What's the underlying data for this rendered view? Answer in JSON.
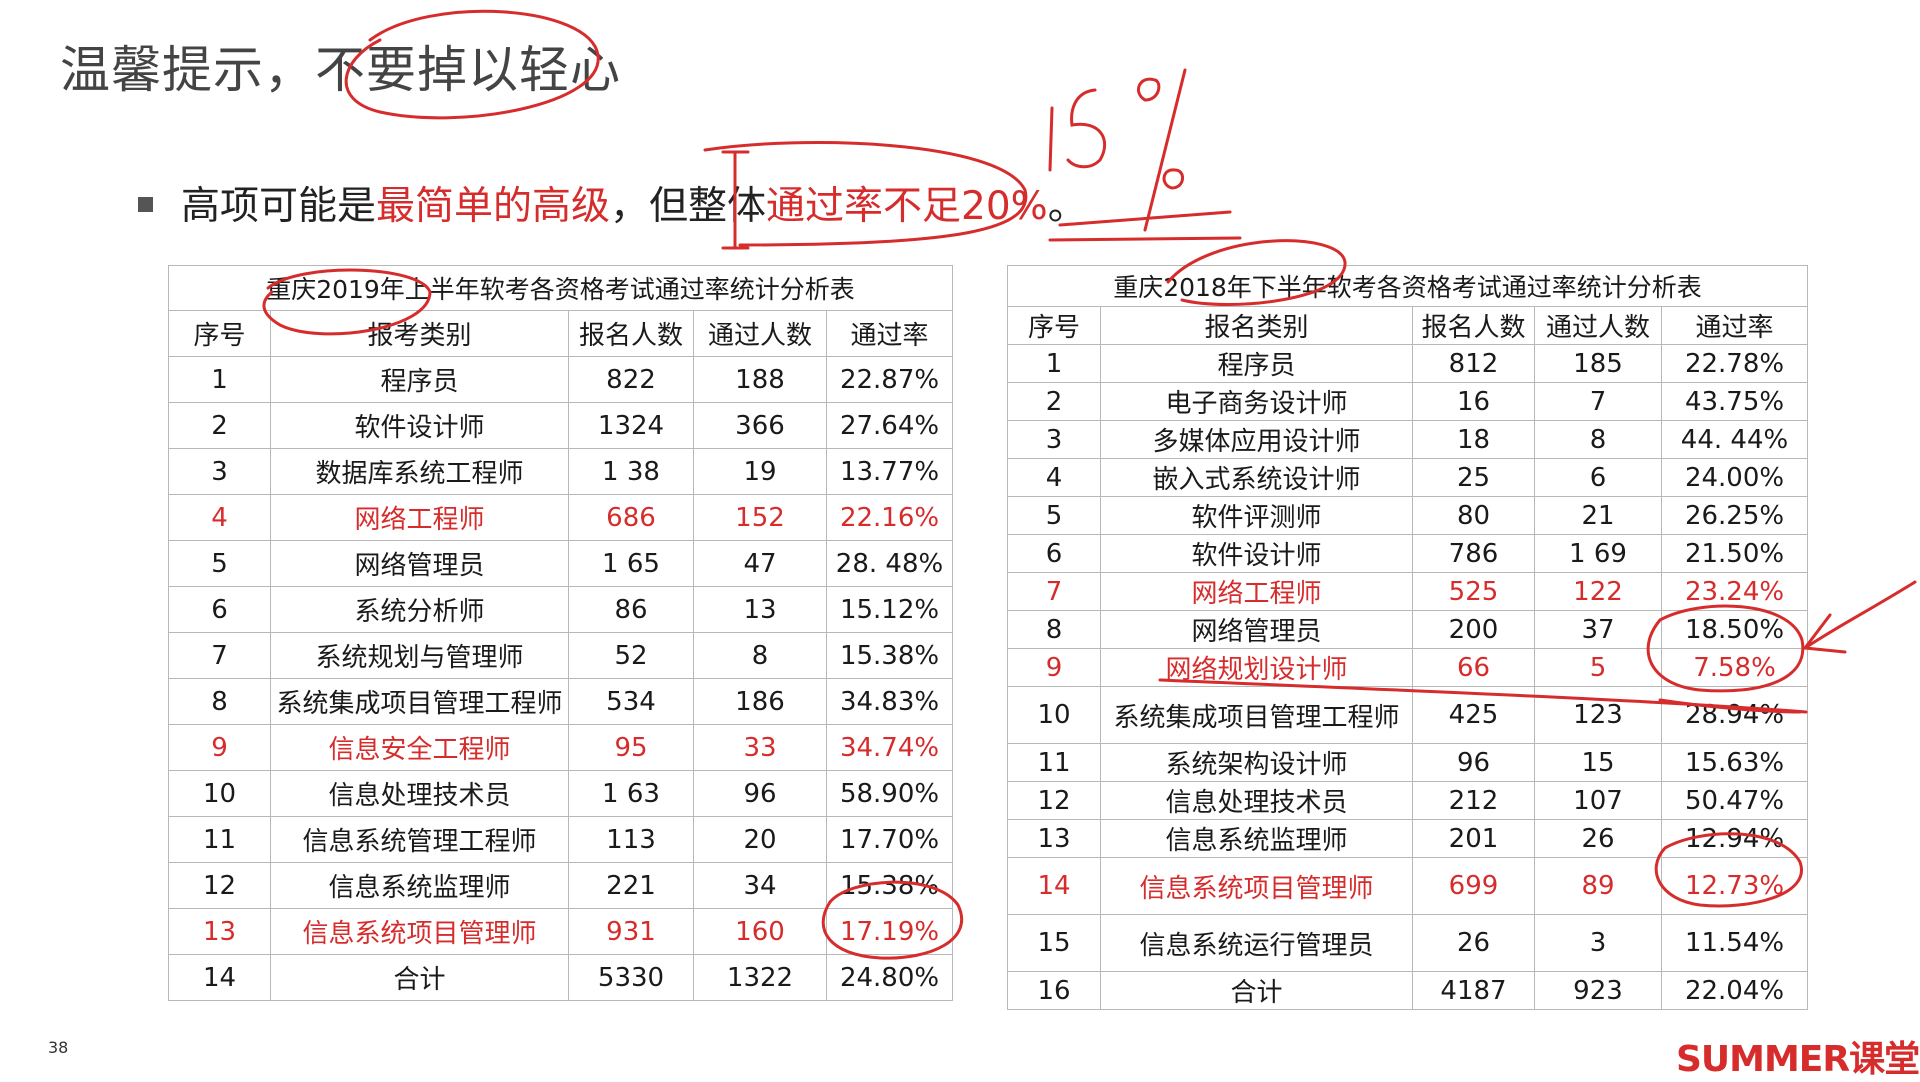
{
  "title": "温馨提示，不要掉以轻心",
  "bullet": {
    "prefix": "高项可能是",
    "highlight1": "最简单的高级",
    "middle": "，但整体",
    "highlight2": "通过率不足20%",
    "suffix": "。"
  },
  "annotation_text": "15%",
  "table_left": {
    "caption": "重庆2019年上半年软考各资格考试通过率统计分析表",
    "headers": [
      "序号",
      "报考类别",
      "报名人数",
      "通过人数",
      "通过率"
    ],
    "rows": [
      [
        "1",
        "程序员",
        "822",
        "188",
        "22.87%"
      ],
      [
        "2",
        "软件设计师",
        "1324",
        "366",
        "27.64%"
      ],
      [
        "3",
        "数据库系统工程师",
        "1 38",
        "19",
        "13.77%"
      ],
      [
        "4",
        "网络工程师",
        "686",
        "152",
        "22.16%"
      ],
      [
        "5",
        "网络管理员",
        "1 65",
        "47",
        "28. 48%"
      ],
      [
        "6",
        "系统分析师",
        "86",
        "13",
        "15.12%"
      ],
      [
        "7",
        "系统规划与管理师",
        "52",
        "8",
        "15.38%"
      ],
      [
        "8",
        "系统集成项目管理工程师",
        "534",
        "186",
        "34.83%"
      ],
      [
        "9",
        "信息安全工程师",
        "95",
        "33",
        "34.74%"
      ],
      [
        "10",
        "信息处理技术员",
        "1 63",
        "96",
        "58.90%"
      ],
      [
        "11",
        "信息系统管理工程师",
        "113",
        "20",
        "17.70%"
      ],
      [
        "12",
        "信息系统监理师",
        "221",
        "34",
        "15.38%"
      ],
      [
        "13",
        "信息系统项目管理师",
        "931",
        "160",
        "17.19%"
      ],
      [
        "14",
        "合计",
        "5330",
        "1322",
        "24.80%"
      ]
    ]
  },
  "table_right": {
    "caption": "重庆2018年下半年软考各资格考试通过率统计分析表",
    "headers": [
      "序号",
      "报名类别",
      "报名人数",
      "通过人数",
      "通过率"
    ],
    "rows": [
      [
        "1",
        "程序员",
        "812",
        "185",
        "22.78%"
      ],
      [
        "2",
        "电子商务设计师",
        "16",
        "7",
        "43.75%"
      ],
      [
        "3",
        "多媒体应用设计师",
        "18",
        "8",
        "44. 44%"
      ],
      [
        "4",
        "嵌入式系统设计师",
        "25",
        "6",
        "24.00%"
      ],
      [
        "5",
        "软件评测师",
        "80",
        "21",
        "26.25%"
      ],
      [
        "6",
        "软件设计师",
        "786",
        "1 69",
        "21.50%"
      ],
      [
        "7",
        "网络工程师",
        "525",
        "122",
        "23.24%"
      ],
      [
        "8",
        "网络管理员",
        "200",
        "37",
        "18.50%"
      ],
      [
        "9",
        "网络规划设计师",
        "66",
        "5",
        "7.58%"
      ],
      [
        "10",
        "系统集成项目管理工程师",
        "425",
        "123",
        "28.94%"
      ],
      [
        "11",
        "系统架构设计师",
        "96",
        "15",
        "15.63%"
      ],
      [
        "12",
        "信息处理技术员",
        "212",
        "107",
        "50.47%"
      ],
      [
        "13",
        "信息系统监理师",
        "201",
        "26",
        "12.94%"
      ],
      [
        "14",
        "信息系统项目管理师",
        "699",
        "89",
        "12.73%"
      ],
      [
        "15",
        "信息系统运行管理员",
        "26",
        "3",
        "11.54%"
      ],
      [
        "16",
        "合计",
        "4187",
        "923",
        "22.04%"
      ]
    ]
  },
  "page_number": "38",
  "logo": {
    "brand": "SUMMER",
    "suffix": "课堂"
  },
  "colors": {
    "accent_red": "#d62c2c",
    "title_gray": "#444444"
  }
}
